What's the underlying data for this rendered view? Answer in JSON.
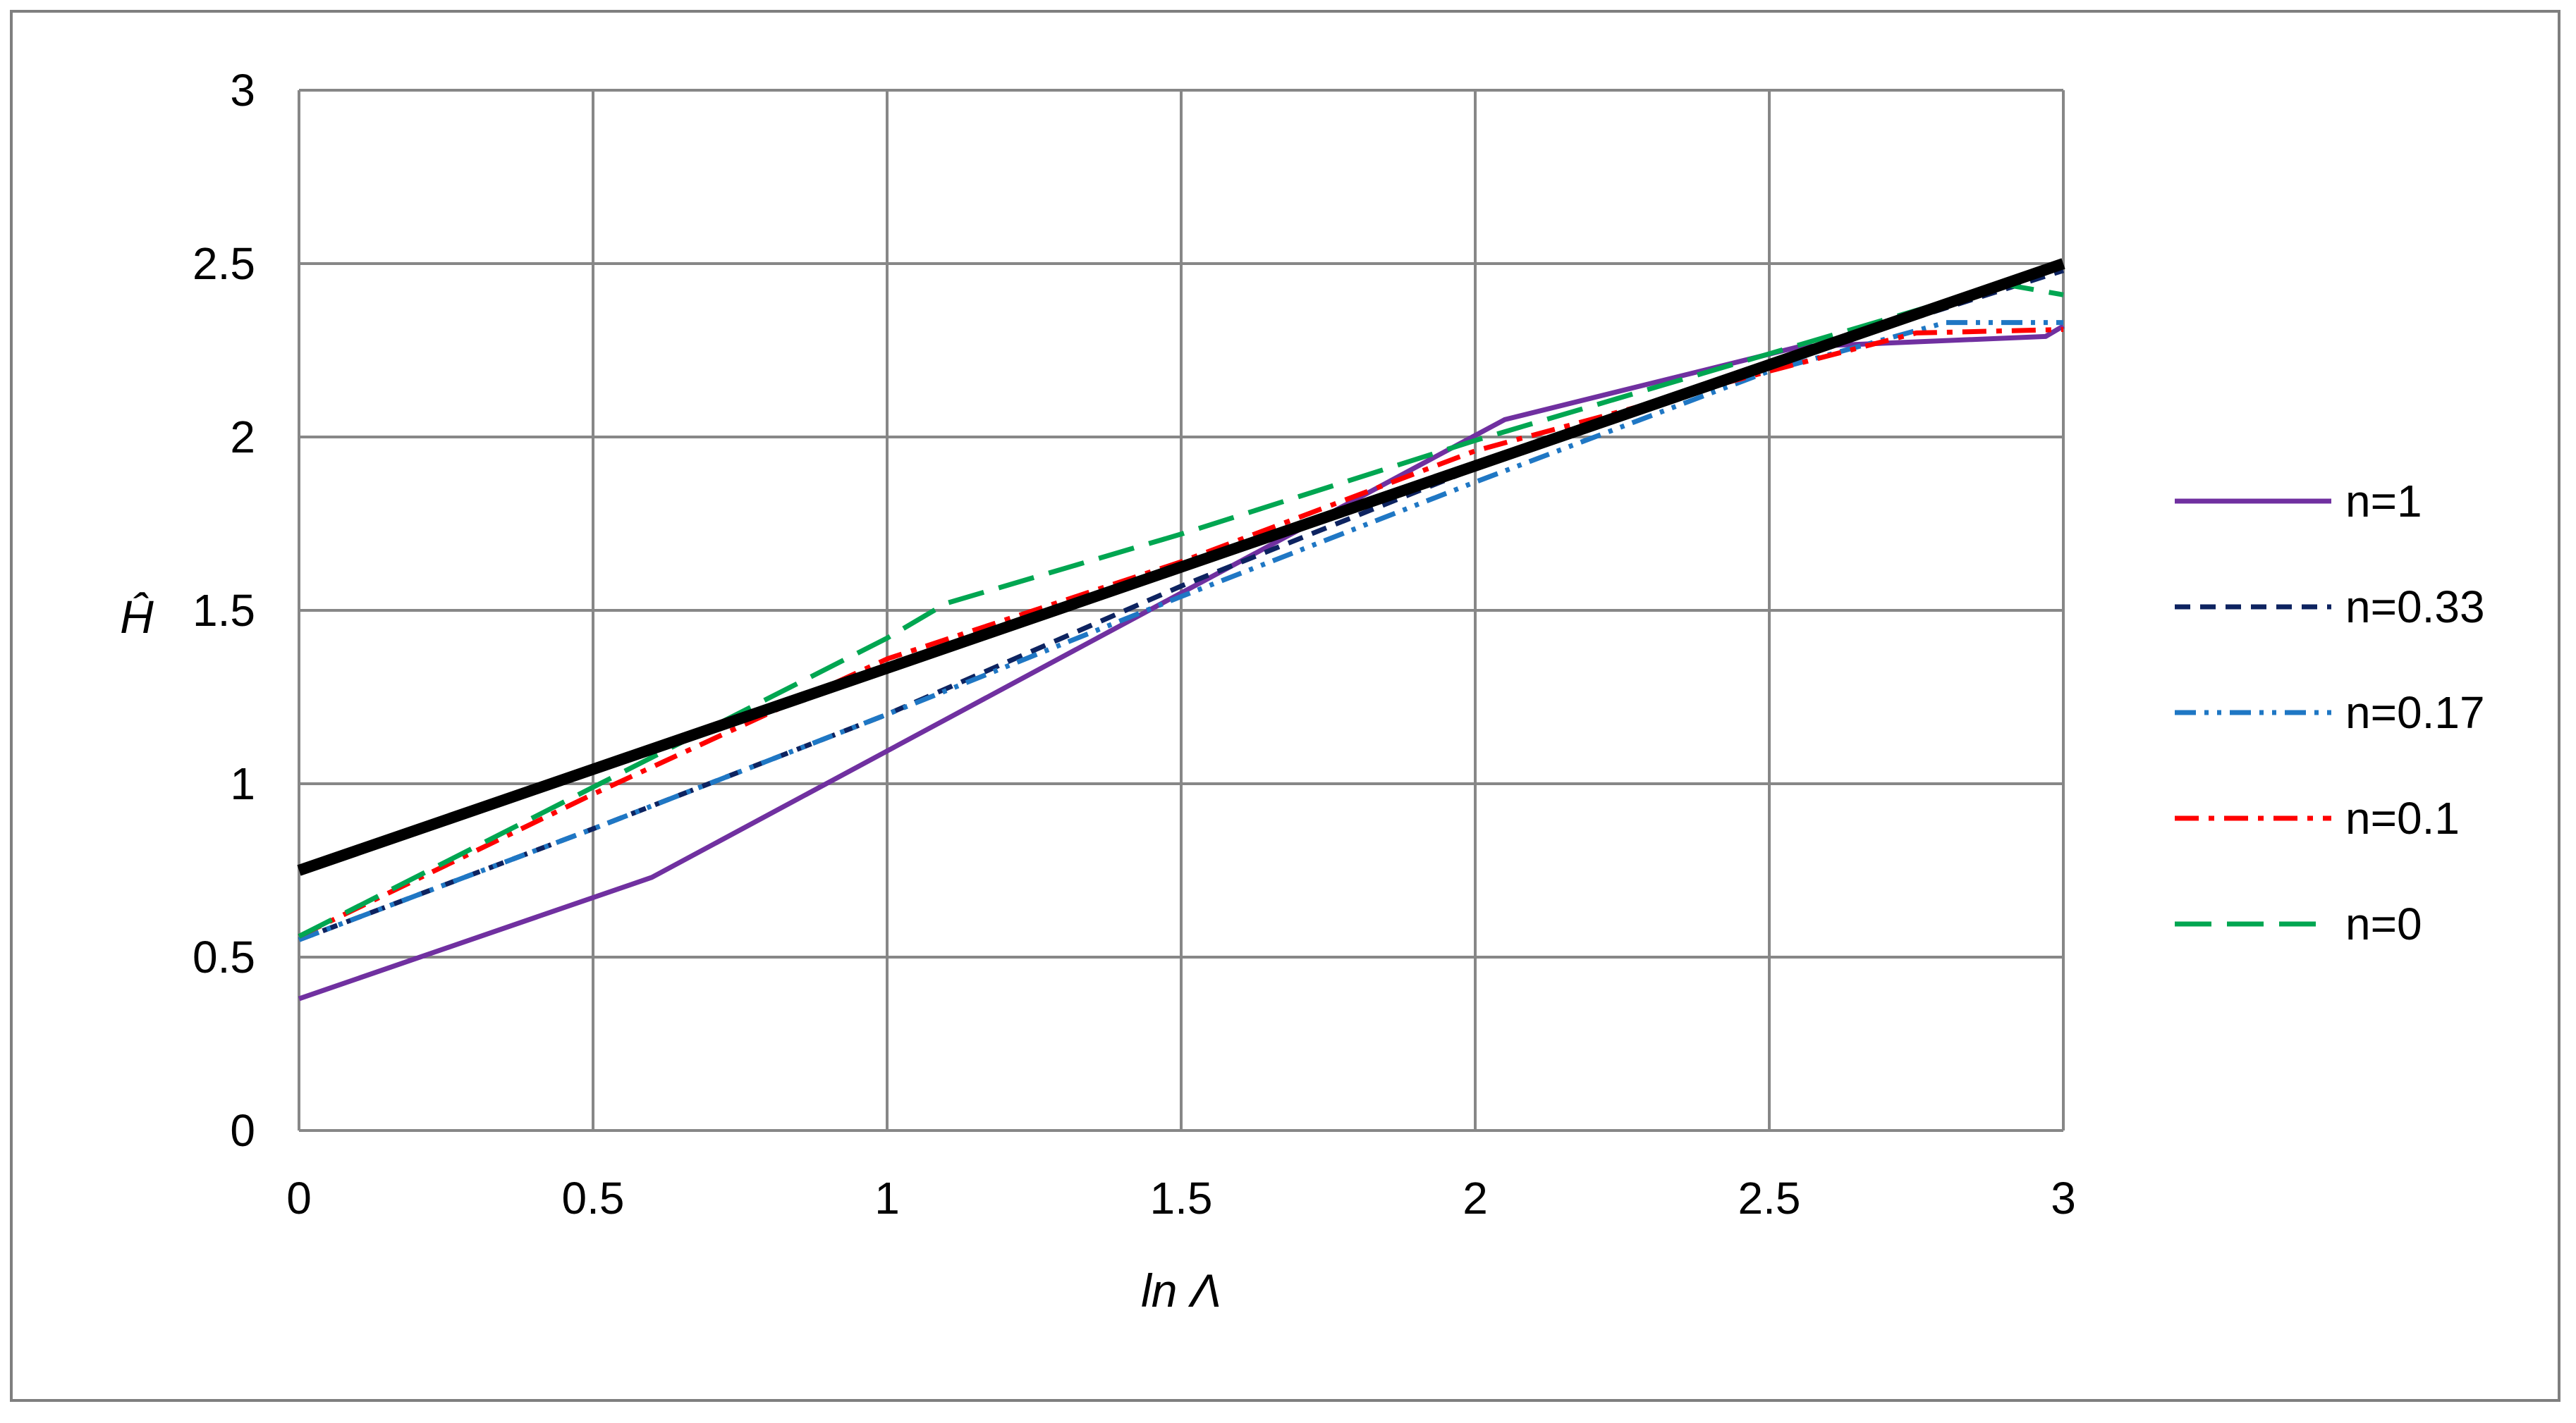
{
  "chart_data": {
    "type": "line",
    "title": "",
    "xlabel": "ln Λ",
    "ylabel": "Ĥ",
    "xlim": [
      0,
      3
    ],
    "ylim": [
      0,
      3
    ],
    "x_ticks": [
      "0",
      "0.5",
      "1",
      "1.5",
      "2",
      "2.5",
      "3"
    ],
    "y_ticks": [
      "0",
      "0.5",
      "1",
      "1.5",
      "2",
      "2.5",
      "3"
    ],
    "grid": true,
    "legend_position": "right",
    "series": [
      {
        "name": "n=1",
        "color": "#7030a0",
        "style": "solid",
        "x": [
          0,
          0.6,
          1.5,
          2.05,
          2.55,
          2.97,
          3.0
        ],
        "y": [
          0.38,
          0.73,
          1.55,
          2.05,
          2.26,
          2.29,
          2.32
        ]
      },
      {
        "name": "n=0.33",
        "color": "#0d2360",
        "style": "short-dash",
        "x": [
          0,
          0.5,
          1.0,
          1.5,
          2.0,
          2.5,
          3.0
        ],
        "y": [
          0.55,
          0.87,
          1.2,
          1.57,
          1.91,
          2.21,
          2.48
        ]
      },
      {
        "name": "n=0.17",
        "color": "#1f77c4",
        "style": "dash-dot-dot",
        "x": [
          0,
          0.5,
          1.0,
          1.5,
          2.0,
          2.5,
          2.8,
          3.0
        ],
        "y": [
          0.55,
          0.87,
          1.2,
          1.54,
          1.87,
          2.19,
          2.33,
          2.33
        ]
      },
      {
        "name": "n=0.1",
        "color": "#ff0000",
        "style": "dash-dot",
        "x": [
          0,
          0.5,
          1.0,
          1.5,
          2.0,
          2.5,
          2.75,
          3.0
        ],
        "y": [
          0.56,
          0.97,
          1.36,
          1.64,
          1.96,
          2.19,
          2.3,
          2.31
        ]
      },
      {
        "name": "n=0",
        "color": "#00a651",
        "style": "long-dash",
        "x": [
          0,
          0.5,
          1.0,
          1.1,
          1.5,
          2.0,
          2.5,
          2.9,
          3.0
        ],
        "y": [
          0.56,
          0.99,
          1.42,
          1.52,
          1.72,
          1.99,
          2.24,
          2.44,
          2.41
        ]
      }
    ],
    "reference_line": {
      "color": "#000000",
      "x": [
        0,
        3
      ],
      "y": [
        0.75,
        2.5
      ]
    }
  }
}
